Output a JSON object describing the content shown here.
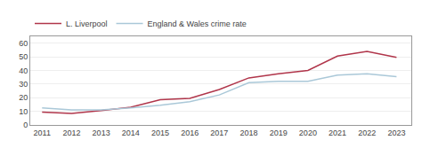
{
  "chart_data": {
    "type": "line",
    "x": [
      2011,
      2012,
      2013,
      2014,
      2015,
      2016,
      2017,
      2018,
      2019,
      2020,
      2021,
      2022,
      2023
    ],
    "series": [
      {
        "name": "L. Liverpool",
        "color": "#b0354a",
        "values": [
          9.5,
          8.5,
          10.5,
          13.0,
          18.5,
          19.5,
          26.0,
          34.5,
          37.5,
          40.0,
          50.5,
          54.0,
          49.5
        ]
      },
      {
        "name": "England & Wales crime rate",
        "color": "#aac8d8",
        "values": [
          12.5,
          11.0,
          11.0,
          12.5,
          14.5,
          17.0,
          22.0,
          31.0,
          32.0,
          32.0,
          36.5,
          37.5,
          35.5
        ]
      }
    ],
    "xlim": [
      2010.6,
      2023.5
    ],
    "xticks": [
      2011,
      2012,
      2013,
      2014,
      2015,
      2016,
      2017,
      2018,
      2019,
      2020,
      2021,
      2022,
      2023
    ],
    "ylim": [
      0,
      65
    ],
    "yticks": [
      0,
      10,
      20,
      30,
      40,
      50,
      60
    ],
    "grid": true,
    "legend": "upper left"
  }
}
